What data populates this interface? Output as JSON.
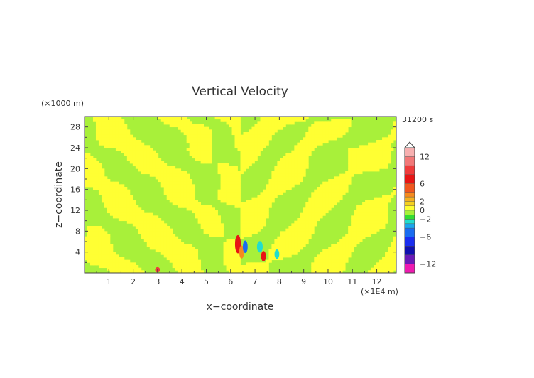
{
  "chart_data": {
    "type": "heatmap",
    "title": "Vertical Velocity",
    "xlabel": "x−coordinate",
    "ylabel": "z−coordinate",
    "x_unit": "(×1E4 m)",
    "y_unit": "(×1000 m)",
    "time_label": "31200 s",
    "xlim": [
      0,
      12.8
    ],
    "ylim": [
      0,
      30
    ],
    "x_ticks": [
      1,
      2,
      3,
      4,
      5,
      6,
      7,
      8,
      9,
      10,
      11,
      12
    ],
    "y_ticks": [
      4,
      8,
      12,
      16,
      20,
      24,
      28
    ],
    "colorbar": {
      "range": [
        -14,
        14
      ],
      "tick_labels": [
        "12",
        "6",
        "2",
        "0",
        "−2",
        "−6",
        "−12"
      ],
      "tick_values": [
        12,
        6,
        2,
        0,
        -2,
        -6,
        -12
      ],
      "extend": "max",
      "levels": [
        {
          "from": 12,
          "to": 14,
          "color": "#f7b0b0"
        },
        {
          "from": 10,
          "to": 12,
          "color": "#f27878"
        },
        {
          "from": 8,
          "to": 10,
          "color": "#ef3b3b"
        },
        {
          "from": 6,
          "to": 8,
          "color": "#e81414"
        },
        {
          "from": 4,
          "to": 6,
          "color": "#f0561e"
        },
        {
          "from": 3,
          "to": 4,
          "color": "#f58a1e"
        },
        {
          "from": 2,
          "to": 3,
          "color": "#f5b020"
        },
        {
          "from": 1,
          "to": 2,
          "color": "#f5d020"
        },
        {
          "from": 0,
          "to": 1,
          "color": "#ffff33"
        },
        {
          "from": -1,
          "to": 0,
          "color": "#a8f03a"
        },
        {
          "from": -2,
          "to": -1,
          "color": "#33dd33"
        },
        {
          "from": -3,
          "to": -2,
          "color": "#22ddcc"
        },
        {
          "from": -4,
          "to": -3,
          "color": "#1aa6ee"
        },
        {
          "from": -6,
          "to": -4,
          "color": "#1a6cf0"
        },
        {
          "from": -8,
          "to": -6,
          "color": "#1a2ef0"
        },
        {
          "from": -10,
          "to": -8,
          "color": "#1010b0"
        },
        {
          "from": -12,
          "to": -10,
          "color": "#6a1ab8"
        },
        {
          "from": -14,
          "to": -12,
          "color": "#ee1ab0"
        }
      ]
    },
    "field_colors": {
      "positive": "#ffff33",
      "negative": "#a8f03a"
    }
  }
}
